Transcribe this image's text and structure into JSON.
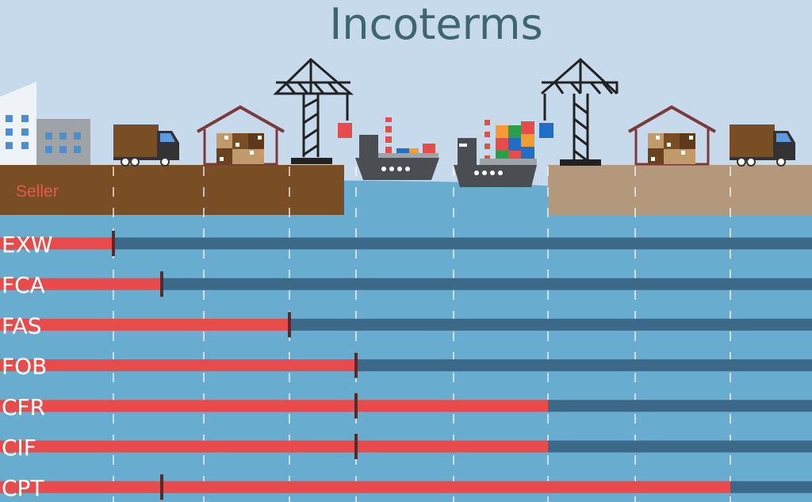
{
  "title": "Incoterms",
  "seller_label": "Seller",
  "colors": {
    "sky": "#c6daec",
    "water": "#68adcf",
    "seller_land": "#7a4e24",
    "buyer_land": "#b4987b",
    "seller_cost": "#e84b4b",
    "buyer_cost": "#3b6987",
    "risk_marker": "#5a2a2a"
  },
  "icons": [
    "office-building-icon",
    "delivery-truck-icon",
    "warehouse-icon",
    "port-crane-icon",
    "cargo-ship-icon"
  ],
  "terms": [
    {
      "label": "EXW",
      "cost_until_point": 0,
      "risk_point": 0
    },
    {
      "label": "FCA",
      "cost_until_point": 1,
      "risk_point": 1
    },
    {
      "label": "FAS",
      "cost_until_point": 3,
      "risk_point": 3
    },
    {
      "label": "FOB",
      "cost_until_point": 4,
      "risk_point": 4
    },
    {
      "label": "CFR",
      "cost_until_point": 6,
      "risk_point": 4
    },
    {
      "label": "CIF",
      "cost_until_point": 6,
      "risk_point": 4
    },
    {
      "label": "CPT",
      "cost_until_point": 8,
      "risk_point": 1
    }
  ]
}
